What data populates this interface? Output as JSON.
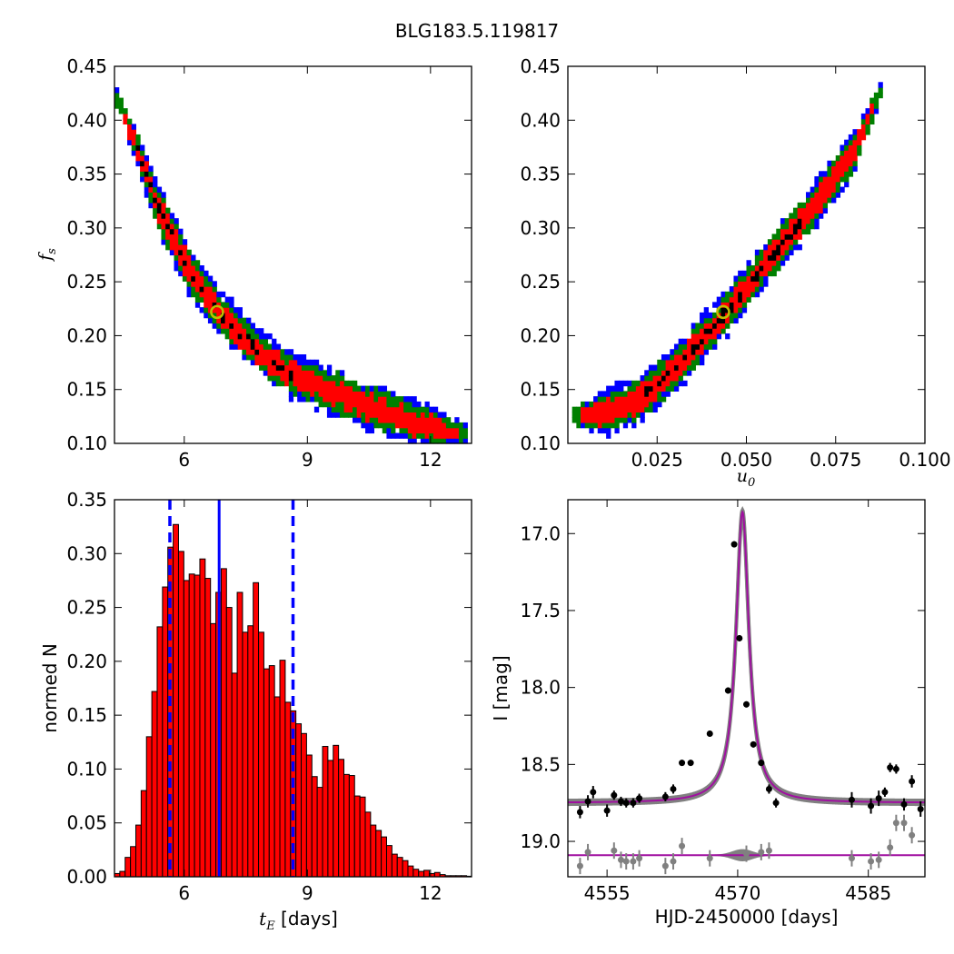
{
  "figure_title": "BLG183.5.119817",
  "colors": {
    "blue": "#0000ff",
    "green": "#008000",
    "red": "#ff0000",
    "black": "#000000",
    "marker": "#bfbf00",
    "model": "#a00fa0",
    "model_band": "#808080",
    "resid": "#808080"
  },
  "chart_data": [
    {
      "type": "heatmap",
      "panel": "tE-fs posterior density",
      "xlabel": "",
      "ylabel": "f_s",
      "xlim": [
        4.3,
        13.0
      ],
      "ylim": [
        0.1,
        0.45
      ],
      "xticks": [
        "6",
        "9",
        "12"
      ],
      "xtick_values": [
        6,
        9,
        12
      ],
      "yticks": [
        "0.10",
        "0.15",
        "0.20",
        "0.25",
        "0.30",
        "0.35",
        "0.40",
        "0.45"
      ],
      "ytick_values": [
        0.1,
        0.15,
        0.2,
        0.25,
        0.3,
        0.35,
        0.4,
        0.45
      ],
      "ridge": {
        "x": [
          4.3,
          4.9,
          5.3,
          5.8,
          6.2,
          6.8,
          7.4,
          8.0,
          8.6,
          9.2,
          9.8,
          10.4,
          11.0,
          11.6,
          12.3,
          12.9
        ],
        "y": [
          0.425,
          0.37,
          0.325,
          0.285,
          0.255,
          0.225,
          0.2,
          0.18,
          0.165,
          0.155,
          0.145,
          0.136,
          0.128,
          0.12,
          0.113,
          0.108
        ]
      },
      "contour_levels": [
        "blue",
        "green",
        "red",
        "black"
      ],
      "best_fit": {
        "x": 6.8,
        "y": 0.222
      }
    },
    {
      "type": "heatmap",
      "panel": "u0-fs posterior density",
      "xlabel": "u_0",
      "ylabel": "",
      "xlim": [
        0.0,
        0.1
      ],
      "ylim": [
        0.1,
        0.45
      ],
      "xticks": [
        "0.025",
        "0.050",
        "0.075",
        "0.100"
      ],
      "xtick_values": [
        0.025,
        0.05,
        0.075,
        0.1
      ],
      "yticks": [
        "0.10",
        "0.15",
        "0.20",
        "0.25",
        "0.30",
        "0.35",
        "0.40",
        "0.45"
      ],
      "ytick_values": [
        0.1,
        0.15,
        0.2,
        0.25,
        0.3,
        0.35,
        0.4,
        0.45
      ],
      "ridge": {
        "x": [
          0.001,
          0.01,
          0.02,
          0.03,
          0.04,
          0.05,
          0.06,
          0.07,
          0.08,
          0.088
        ],
        "y": [
          0.125,
          0.128,
          0.14,
          0.17,
          0.205,
          0.245,
          0.285,
          0.325,
          0.37,
          0.43
        ]
      },
      "contour_levels": [
        "blue",
        "green",
        "red",
        "black"
      ],
      "best_fit": {
        "x": 0.0435,
        "y": 0.222
      }
    },
    {
      "type": "bar",
      "panel": "tE histogram",
      "xlabel": "[days]",
      "xlabel_symbol": "t",
      "xlabel_sub": "E",
      "ylabel": "normed N",
      "xlim": [
        4.3,
        13.0
      ],
      "ylim": [
        0.0,
        0.35
      ],
      "xticks": [
        "6",
        "9",
        "12"
      ],
      "xtick_values": [
        6,
        9,
        12
      ],
      "yticks": [
        "0.00",
        "0.05",
        "0.10",
        "0.15",
        "0.20",
        "0.25",
        "0.30",
        "0.35"
      ],
      "ytick_values": [
        0.0,
        0.05,
        0.1,
        0.15,
        0.2,
        0.25,
        0.3,
        0.35
      ],
      "bin_start": 4.3,
      "bin_width": 0.13,
      "values": [
        0.003,
        0.005,
        0.018,
        0.028,
        0.048,
        0.08,
        0.13,
        0.172,
        0.232,
        0.269,
        0.306,
        0.327,
        0.302,
        0.275,
        0.281,
        0.28,
        0.295,
        0.277,
        0.235,
        0.264,
        0.286,
        0.25,
        0.189,
        0.264,
        0.227,
        0.233,
        0.273,
        0.227,
        0.193,
        0.196,
        0.167,
        0.201,
        0.162,
        0.154,
        0.142,
        0.133,
        0.113,
        0.093,
        0.083,
        0.121,
        0.108,
        0.122,
        0.109,
        0.095,
        0.094,
        0.075,
        0.074,
        0.06,
        0.048,
        0.043,
        0.037,
        0.029,
        0.021,
        0.018,
        0.015,
        0.01,
        0.007,
        0.005,
        0.006,
        0.003,
        0.004,
        0.002,
        0.001,
        0.001,
        0.001,
        0.001,
        0.0005
      ],
      "median": 6.85,
      "lower": 5.65,
      "upper": 8.65
    },
    {
      "type": "scatter",
      "panel": "light curve",
      "xlabel": "HJD-2450000 [days]",
      "ylabel": "I [mag]",
      "xlim": [
        4550.5,
        4591.5
      ],
      "ylim": [
        19.23,
        16.78
      ],
      "xticks": [
        "4555",
        "4570",
        "4585"
      ],
      "xtick_values": [
        4555,
        4570,
        4585
      ],
      "yticks": [
        "17.0",
        "17.5",
        "18.0",
        "18.5",
        "19.0"
      ],
      "ytick_values": [
        17.0,
        17.5,
        18.0,
        18.5,
        19.0
      ],
      "model": {
        "t0": 4570.55,
        "baseline": 18.75,
        "peak_mag": 16.86,
        "width": 0.9,
        "resid_line": 19.09
      },
      "data": {
        "t": [
          4551.9,
          4552.8,
          4553.4,
          4555.0,
          4555.8,
          4556.6,
          4557.2,
          4558.0,
          4558.7,
          4561.7,
          4562.6,
          4563.6,
          4564.6,
          4566.8,
          4568.9,
          4569.6,
          4570.2,
          4571.0,
          4571.8,
          4572.7,
          4573.6,
          4574.4,
          4583.1,
          4585.3,
          4586.2,
          4586.9,
          4587.5,
          4588.2,
          4589.1,
          4590.0,
          4591.0
        ],
        "mag": [
          18.81,
          18.74,
          18.68,
          18.8,
          18.7,
          18.74,
          18.75,
          18.75,
          18.72,
          18.71,
          18.66,
          18.49,
          18.49,
          18.3,
          18.02,
          17.07,
          17.68,
          18.11,
          18.37,
          18.49,
          18.66,
          18.75,
          18.73,
          18.77,
          18.72,
          18.68,
          18.52,
          18.53,
          18.76,
          18.61,
          18.79
        ],
        "err": [
          0.04,
          0.04,
          0.04,
          0.04,
          0.03,
          0.03,
          0.03,
          0.03,
          0.03,
          0.03,
          0.03,
          0.02,
          0.02,
          0.02,
          0.02,
          0.02,
          0.02,
          0.02,
          0.02,
          0.02,
          0.03,
          0.03,
          0.05,
          0.05,
          0.05,
          0.03,
          0.03,
          0.03,
          0.04,
          0.04,
          0.05
        ]
      },
      "residuals": {
        "t": [
          4551.9,
          4552.8,
          4555.8,
          4556.6,
          4557.2,
          4558.0,
          4558.7,
          4561.7,
          4562.6,
          4563.6,
          4566.8,
          4571.0,
          4572.7,
          4573.6,
          4583.1,
          4585.3,
          4586.2,
          4587.5,
          4588.2,
          4589.1,
          4590.0
        ],
        "mag": [
          19.16,
          19.07,
          19.06,
          19.12,
          19.13,
          19.13,
          19.11,
          19.16,
          19.13,
          19.03,
          19.11,
          19.08,
          19.07,
          19.06,
          19.11,
          19.13,
          19.12,
          19.04,
          18.88,
          18.88,
          18.96
        ]
      }
    }
  ]
}
